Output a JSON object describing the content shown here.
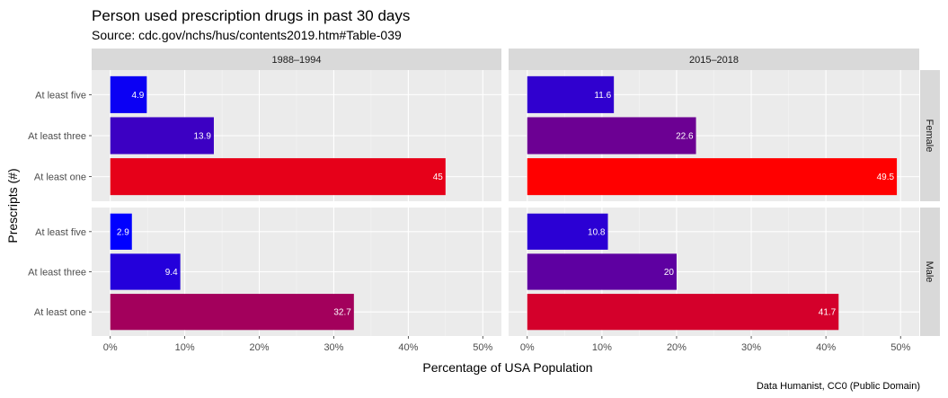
{
  "chart_data": {
    "type": "bar",
    "orientation": "horizontal",
    "title": "Person used prescription drugs in past 30 days",
    "subtitle": "Source: cdc.gov/nchs/hus/contents2019.htm#Table-039",
    "xlabel": "Percentage of USA Population",
    "ylabel": "Prescripts (#)",
    "caption": "Data Humanist, CC0 (Public Domain)",
    "categories": [
      "At least five",
      "At least three",
      "At least one"
    ],
    "x_ticks": [
      "0%",
      "10%",
      "20%",
      "30%",
      "40%",
      "50%"
    ],
    "xlim": [
      0,
      50
    ],
    "facet_columns": [
      "1988–1994",
      "2015–2018"
    ],
    "facet_rows": [
      "Female",
      "Male"
    ],
    "color_scale": {
      "low": "#0000ff",
      "high": "#ff0000",
      "range": [
        2.9,
        49.5
      ]
    },
    "panels": [
      {
        "column": "1988–1994",
        "row": "Female",
        "values": [
          4.9,
          13.9,
          45
        ],
        "labels": [
          "4.9",
          "13.9",
          "45"
        ]
      },
      {
        "column": "2015–2018",
        "row": "Female",
        "values": [
          11.6,
          22.6,
          49.5
        ],
        "labels": [
          "11.6",
          "22.6",
          "49.5"
        ]
      },
      {
        "column": "1988–1994",
        "row": "Male",
        "values": [
          2.9,
          9.4,
          32.7
        ],
        "labels": [
          "2.9",
          "9.4",
          "32.7"
        ]
      },
      {
        "column": "2015–2018",
        "row": "Male",
        "values": [
          10.8,
          20,
          41.7
        ],
        "labels": [
          "10.8",
          "20",
          "41.7"
        ]
      }
    ],
    "grid": true
  }
}
